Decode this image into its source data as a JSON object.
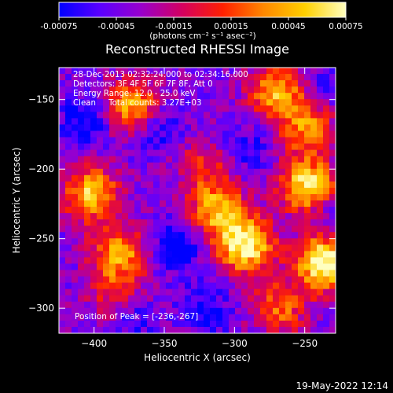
{
  "chart_data": {
    "type": "heatmap",
    "title": "Reconstructed RHESSI Image",
    "xlabel": "Heliocentric X (arcsec)",
    "ylabel": "Heliocentric Y (arcsec)",
    "xlim": [
      -425,
      -228
    ],
    "ylim": [
      -318,
      -127
    ],
    "xticks": [
      -400,
      -350,
      -300,
      -250
    ],
    "yticks": [
      -150,
      -200,
      -250,
      -300
    ],
    "colorbar": {
      "range": [
        -0.00075,
        0.00075
      ],
      "ticks": [
        "-0.00075",
        "-0.00045",
        "-0.00015",
        "0.00015",
        "0.00045",
        "0.00075"
      ],
      "unit_label": "(photons cm⁻² s⁻¹ asec⁻²)",
      "colors": [
        "#0000ff",
        "#5a00ff",
        "#9900cc",
        "#d40060",
        "#ff2000",
        "#ff8800",
        "#ffd000",
        "#ffffc0"
      ]
    },
    "annotations": [
      "28-Dec-2013 02:32:24.000 to 02:34:16.000",
      "Detectors: 3F 4F 5F 6F 7F 8F, Att 0",
      "Energy Range: 12.0 - 25.0 keV",
      "Clean     Total counts: 3.27E+03"
    ],
    "peak_label": "Position of Peak = [-236,-267]",
    "peak": [
      -236,
      -267
    ],
    "sources": [
      {
        "x": -236,
        "y": -267,
        "strength": 1.0
      },
      {
        "x": -248,
        "y": -212,
        "strength": 0.85
      },
      {
        "x": -292,
        "y": -255,
        "strength": 0.9
      },
      {
        "x": -312,
        "y": -230,
        "strength": 0.7
      },
      {
        "x": -372,
        "y": -155,
        "strength": 0.7
      },
      {
        "x": -402,
        "y": -218,
        "strength": 0.75
      },
      {
        "x": -382,
        "y": -262,
        "strength": 0.65
      },
      {
        "x": -270,
        "y": -145,
        "strength": 0.7
      },
      {
        "x": -248,
        "y": -170,
        "strength": 0.55
      },
      {
        "x": -268,
        "y": -300,
        "strength": 0.5
      },
      {
        "x": -322,
        "y": -198,
        "strength": 0.35
      },
      {
        "x": -385,
        "y": -295,
        "strength": 0.35
      }
    ],
    "negatives": [
      {
        "x": -405,
        "y": -165,
        "strength": 0.6
      },
      {
        "x": -340,
        "y": -255,
        "strength": 0.7
      },
      {
        "x": -355,
        "y": -170,
        "strength": 0.55
      },
      {
        "x": -375,
        "y": -305,
        "strength": 0.5
      },
      {
        "x": -290,
        "y": -185,
        "strength": 0.4
      },
      {
        "x": -320,
        "y": -300,
        "strength": 0.45
      },
      {
        "x": -235,
        "y": -235,
        "strength": 0.35
      },
      {
        "x": -240,
        "y": -140,
        "strength": 0.3
      }
    ]
  },
  "footer": {
    "timestamp": "19-May-2022 12:14"
  }
}
